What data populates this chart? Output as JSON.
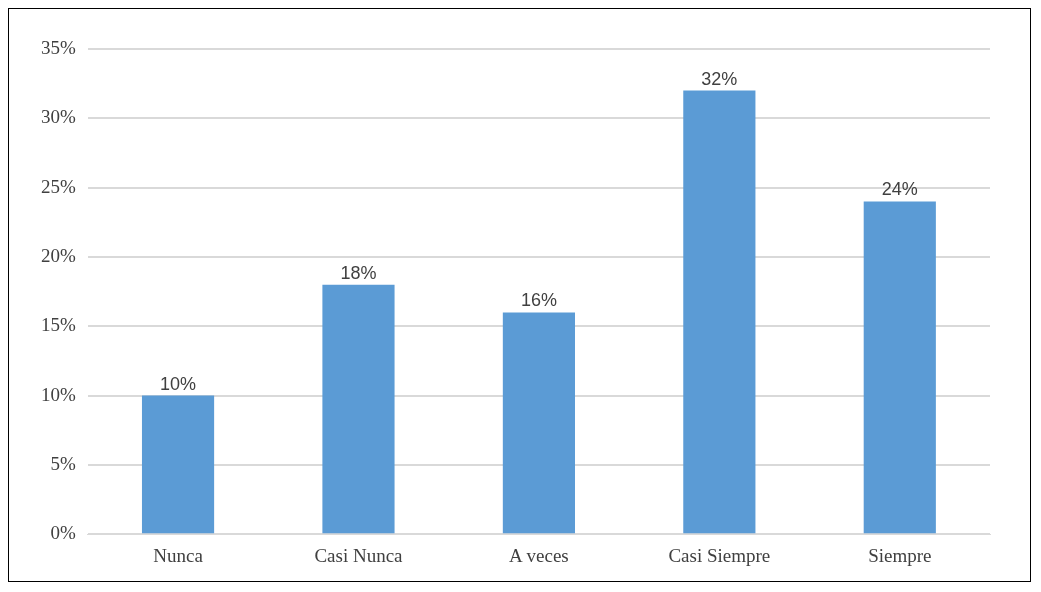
{
  "chart_data": {
    "type": "bar",
    "categories": [
      "Nunca",
      "Casi Nunca",
      "A veces",
      "Casi Siempre",
      "Siempre"
    ],
    "values": [
      10,
      18,
      16,
      32,
      24
    ],
    "value_labels": [
      "10%",
      "18%",
      "16%",
      "32%",
      "24%"
    ],
    "color": "#5b9bd5",
    "ylim": [
      0,
      35
    ],
    "yticks": [
      {
        "value": 0,
        "label": "0%"
      },
      {
        "value": 5,
        "label": "5%"
      },
      {
        "value": 10,
        "label": "10%"
      },
      {
        "value": 15,
        "label": "15%"
      },
      {
        "value": 20,
        "label": "20%"
      },
      {
        "value": 25,
        "label": "25%"
      },
      {
        "value": 30,
        "label": "30%"
      },
      {
        "value": 35,
        "label": "35%"
      }
    ],
    "grid": "y",
    "legend": false
  }
}
